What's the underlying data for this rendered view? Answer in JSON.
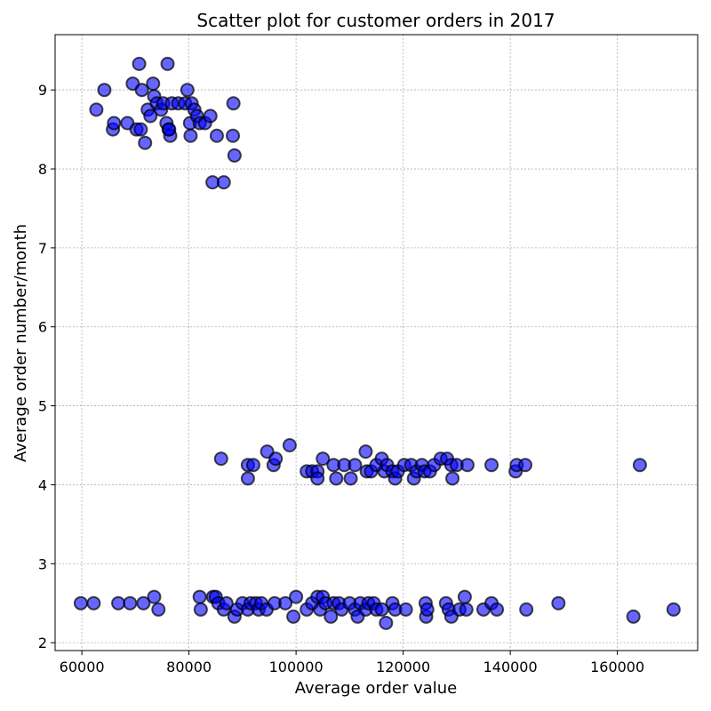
{
  "chart_data": {
    "type": "scatter",
    "title": "Scatter plot for customer orders in 2017",
    "xlabel": "Average order value",
    "ylabel": "Average order number/month",
    "xlim": [
      55000,
      175000
    ],
    "ylim": [
      1.9,
      9.7
    ],
    "xticks": [
      60000,
      80000,
      100000,
      120000,
      140000,
      160000
    ],
    "yticks": [
      2,
      3,
      4,
      5,
      6,
      7,
      8,
      9
    ],
    "grid": true,
    "marker_color": "#0000ff",
    "marker_edge_color": "#000000",
    "series": [
      {
        "points": [
          [
            70700,
            9.33
          ],
          [
            76000,
            9.33
          ],
          [
            64200,
            9.0
          ],
          [
            69500,
            9.08
          ],
          [
            71200,
            9.0
          ],
          [
            73300,
            9.08
          ],
          [
            79700,
            9.0
          ],
          [
            62700,
            8.75
          ],
          [
            65800,
            8.5
          ],
          [
            66000,
            8.58
          ],
          [
            68500,
            8.58
          ],
          [
            70200,
            8.5
          ],
          [
            71000,
            8.5
          ],
          [
            71800,
            8.33
          ],
          [
            72300,
            8.75
          ],
          [
            72800,
            8.67
          ],
          [
            73500,
            8.92
          ],
          [
            74000,
            8.83
          ],
          [
            74800,
            8.75
          ],
          [
            75200,
            8.83
          ],
          [
            75800,
            8.58
          ],
          [
            76200,
            8.5
          ],
          [
            76500,
            8.42
          ],
          [
            76800,
            8.83
          ],
          [
            78000,
            8.83
          ],
          [
            79300,
            8.83
          ],
          [
            80200,
            8.58
          ],
          [
            80500,
            8.83
          ],
          [
            81000,
            8.75
          ],
          [
            81500,
            8.67
          ],
          [
            82000,
            8.58
          ],
          [
            80300,
            8.42
          ],
          [
            83000,
            8.58
          ],
          [
            84000,
            8.67
          ],
          [
            85200,
            8.42
          ],
          [
            88300,
            8.83
          ],
          [
            88200,
            8.42
          ],
          [
            88500,
            8.17
          ],
          [
            84400,
            7.83
          ],
          [
            86500,
            7.83
          ],
          [
            76300,
            8.5
          ],
          [
            86000,
            4.33
          ],
          [
            91000,
            4.08
          ],
          [
            91000,
            4.25
          ],
          [
            92000,
            4.25
          ],
          [
            94600,
            4.42
          ],
          [
            95800,
            4.25
          ],
          [
            96200,
            4.33
          ],
          [
            98800,
            4.5
          ],
          [
            102000,
            4.17
          ],
          [
            103000,
            4.17
          ],
          [
            104000,
            4.17
          ],
          [
            104000,
            4.08
          ],
          [
            105000,
            4.33
          ],
          [
            107000,
            4.25
          ],
          [
            107500,
            4.08
          ],
          [
            109000,
            4.25
          ],
          [
            110200,
            4.08
          ],
          [
            111000,
            4.25
          ],
          [
            113000,
            4.42
          ],
          [
            113200,
            4.17
          ],
          [
            114000,
            4.17
          ],
          [
            115000,
            4.25
          ],
          [
            116000,
            4.33
          ],
          [
            116500,
            4.17
          ],
          [
            117000,
            4.25
          ],
          [
            118000,
            4.17
          ],
          [
            118500,
            4.08
          ],
          [
            119000,
            4.17
          ],
          [
            120200,
            4.25
          ],
          [
            121500,
            4.25
          ],
          [
            122000,
            4.08
          ],
          [
            122500,
            4.17
          ],
          [
            123500,
            4.25
          ],
          [
            124000,
            4.17
          ],
          [
            125000,
            4.17
          ],
          [
            125800,
            4.25
          ],
          [
            127000,
            4.33
          ],
          [
            128200,
            4.33
          ],
          [
            129000,
            4.25
          ],
          [
            129200,
            4.08
          ],
          [
            130000,
            4.25
          ],
          [
            132000,
            4.25
          ],
          [
            136500,
            4.25
          ],
          [
            141000,
            4.17
          ],
          [
            141200,
            4.25
          ],
          [
            142800,
            4.25
          ],
          [
            164200,
            4.25
          ],
          [
            59800,
            2.5
          ],
          [
            62200,
            2.5
          ],
          [
            66800,
            2.5
          ],
          [
            69000,
            2.5
          ],
          [
            71500,
            2.5
          ],
          [
            73500,
            2.58
          ],
          [
            74300,
            2.42
          ],
          [
            82000,
            2.58
          ],
          [
            82200,
            2.42
          ],
          [
            84500,
            2.58
          ],
          [
            85000,
            2.58
          ],
          [
            85500,
            2.5
          ],
          [
            86500,
            2.42
          ],
          [
            87000,
            2.5
          ],
          [
            88500,
            2.33
          ],
          [
            89000,
            2.42
          ],
          [
            90000,
            2.5
          ],
          [
            91000,
            2.42
          ],
          [
            91500,
            2.5
          ],
          [
            92500,
            2.5
          ],
          [
            93000,
            2.42
          ],
          [
            93500,
            2.5
          ],
          [
            94500,
            2.42
          ],
          [
            96000,
            2.5
          ],
          [
            98000,
            2.5
          ],
          [
            99500,
            2.33
          ],
          [
            100000,
            2.58
          ],
          [
            102000,
            2.42
          ],
          [
            103000,
            2.5
          ],
          [
            104000,
            2.58
          ],
          [
            104500,
            2.42
          ],
          [
            105000,
            2.58
          ],
          [
            105500,
            2.5
          ],
          [
            106500,
            2.33
          ],
          [
            107000,
            2.5
          ],
          [
            108000,
            2.5
          ],
          [
            108500,
            2.42
          ],
          [
            110000,
            2.5
          ],
          [
            111000,
            2.42
          ],
          [
            111500,
            2.33
          ],
          [
            112000,
            2.5
          ],
          [
            113000,
            2.42
          ],
          [
            113500,
            2.5
          ],
          [
            114500,
            2.5
          ],
          [
            115000,
            2.42
          ],
          [
            116000,
            2.42
          ],
          [
            116800,
            2.25
          ],
          [
            118000,
            2.5
          ],
          [
            118500,
            2.42
          ],
          [
            120500,
            2.42
          ],
          [
            124200,
            2.5
          ],
          [
            124300,
            2.33
          ],
          [
            124500,
            2.42
          ],
          [
            128000,
            2.5
          ],
          [
            128500,
            2.42
          ],
          [
            129000,
            2.33
          ],
          [
            130500,
            2.42
          ],
          [
            131500,
            2.58
          ],
          [
            131800,
            2.42
          ],
          [
            135000,
            2.42
          ],
          [
            136500,
            2.5
          ],
          [
            137500,
            2.42
          ],
          [
            143000,
            2.42
          ],
          [
            149000,
            2.5
          ],
          [
            163000,
            2.33
          ],
          [
            170500,
            2.42
          ]
        ]
      }
    ]
  }
}
